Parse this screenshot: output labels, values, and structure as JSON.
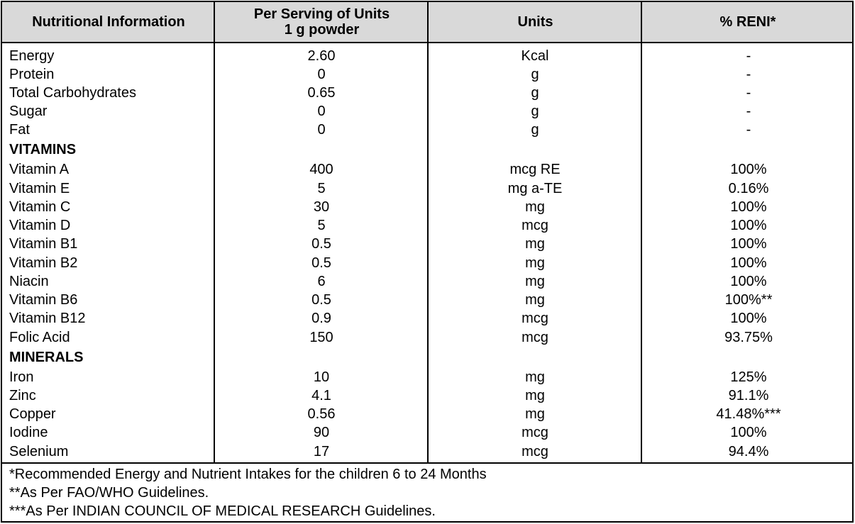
{
  "header": {
    "col1": "Nutritional Information",
    "col2_line1": "Per Serving of Units",
    "col2_line2": "1 g powder",
    "col3": "Units",
    "col4": "% RENI*"
  },
  "rows": [
    {
      "name": "Energy",
      "value": "2.60",
      "unit": "Kcal",
      "reni": "-"
    },
    {
      "name": "Protein",
      "value": "0",
      "unit": "g",
      "reni": "-"
    },
    {
      "name": "Total Carbohydrates",
      "value": "0.65",
      "unit": "g",
      "reni": "-"
    },
    {
      "name": "Sugar",
      "value": "0",
      "unit": "g",
      "reni": "-"
    },
    {
      "name": "Fat",
      "value": "0",
      "unit": "g",
      "reni": "-"
    }
  ],
  "vitamins_label": "VITAMINS",
  "vitamins": [
    {
      "name": "Vitamin A",
      "value": "400",
      "unit": "mcg RE",
      "reni": "100%"
    },
    {
      "name": "Vitamin E",
      "value": "5",
      "unit": "mg a-TE",
      "reni": "0.16%"
    },
    {
      "name": "Vitamin C",
      "value": "30",
      "unit": "mg",
      "reni": "100%"
    },
    {
      "name": "Vitamin D",
      "value": "5",
      "unit": "mcg",
      "reni": "100%"
    },
    {
      "name": "Vitamin B1",
      "value": "0.5",
      "unit": "mg",
      "reni": "100%"
    },
    {
      "name": "Vitamin B2",
      "value": "0.5",
      "unit": "mg",
      "reni": "100%"
    },
    {
      "name": "Niacin",
      "value": "6",
      "unit": "mg",
      "reni": "100%"
    },
    {
      "name": "Vitamin B6",
      "value": "0.5",
      "unit": "mg",
      "reni": "100%**"
    },
    {
      "name": "Vitamin B12",
      "value": "0.9",
      "unit": "mcg",
      "reni": "100%"
    },
    {
      "name": "Folic Acid",
      "value": "150",
      "unit": "mcg",
      "reni": "93.75%"
    }
  ],
  "minerals_label": "MINERALS",
  "minerals": [
    {
      "name": "Iron",
      "value": "10",
      "unit": "mg",
      "reni": "125%"
    },
    {
      "name": "Zinc",
      "value": "4.1",
      "unit": "mg",
      "reni": "91.1%"
    },
    {
      "name": "Copper",
      "value": "0.56",
      "unit": "mg",
      "reni": "41.48%***"
    },
    {
      "name": "Iodine",
      "value": "90",
      "unit": "mcg",
      "reni": "100%"
    },
    {
      "name": "Selenium",
      "value": "17",
      "unit": "mcg",
      "reni": "94.4%"
    }
  ],
  "footnotes": [
    "*Recommended Energy and Nutrient Intakes for the children 6 to 24 Months",
    "**As Per FAO/WHO Guidelines.",
    "***As Per INDIAN COUNCIL OF MEDICAL RESEARCH Guidelines."
  ]
}
